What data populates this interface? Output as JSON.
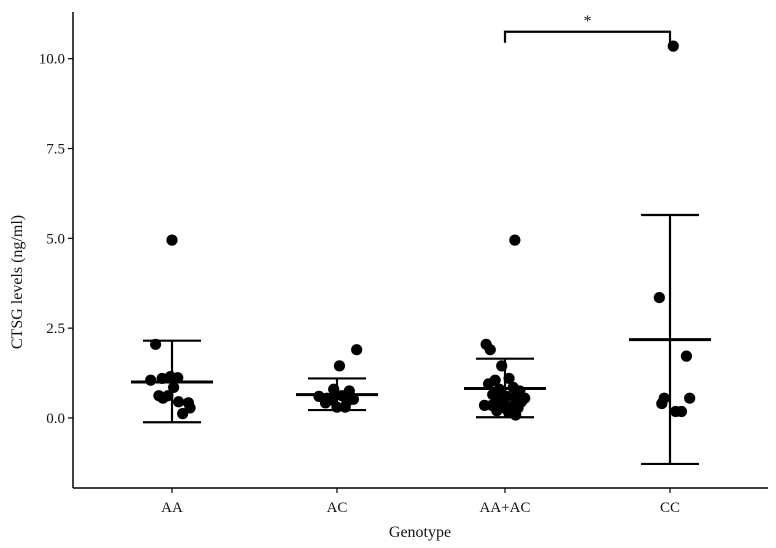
{
  "chart_data": {
    "type": "scatter",
    "xlabel": "Genotype",
    "ylabel": "CTSG levels (ng/ml)",
    "categories": [
      "AA",
      "AC",
      "AA+AC",
      "CC"
    ],
    "ylim": [
      -1.95,
      11.3
    ],
    "yticks": [
      0.0,
      2.5,
      5.0,
      7.5,
      10.0
    ],
    "ytick_labels": [
      "0.0",
      "2.5",
      "5.0",
      "7.5",
      "10.0"
    ],
    "grid": false,
    "legend": "none",
    "series": [
      {
        "category": "AA",
        "mean": 1.0,
        "upper": 2.15,
        "lower": -0.12,
        "points": [
          {
            "dx": 0.0,
            "y": 4.95
          },
          {
            "dx": -0.2,
            "y": 2.05
          },
          {
            "dx": -0.26,
            "y": 1.05
          },
          {
            "dx": -0.12,
            "y": 1.1
          },
          {
            "dx": -0.02,
            "y": 1.15
          },
          {
            "dx": 0.07,
            "y": 1.12
          },
          {
            "dx": -0.16,
            "y": 0.62
          },
          {
            "dx": -0.05,
            "y": 0.62
          },
          {
            "dx": -0.11,
            "y": 0.55
          },
          {
            "dx": 0.02,
            "y": 0.85
          },
          {
            "dx": 0.08,
            "y": 0.45
          },
          {
            "dx": 0.2,
            "y": 0.42
          },
          {
            "dx": 0.22,
            "y": 0.28
          },
          {
            "dx": 0.13,
            "y": 0.12
          }
        ]
      },
      {
        "category": "AC",
        "mean": 0.65,
        "upper": 1.1,
        "lower": 0.22,
        "points": [
          {
            "dx": 0.24,
            "y": 1.9
          },
          {
            "dx": 0.03,
            "y": 1.45
          },
          {
            "dx": -0.04,
            "y": 0.8
          },
          {
            "dx": 0.15,
            "y": 0.75
          },
          {
            "dx": -0.22,
            "y": 0.6
          },
          {
            "dx": -0.12,
            "y": 0.55
          },
          {
            "dx": -0.06,
            "y": 0.5
          },
          {
            "dx": 0.06,
            "y": 0.62
          },
          {
            "dx": 0.12,
            "y": 0.45
          },
          {
            "dx": -0.14,
            "y": 0.42
          },
          {
            "dx": 0.2,
            "y": 0.52
          },
          {
            "dx": 0.0,
            "y": 0.3
          },
          {
            "dx": 0.1,
            "y": 0.3
          }
        ]
      },
      {
        "category": "AA+AC",
        "mean": 0.82,
        "upper": 1.65,
        "lower": 0.02,
        "points": [
          {
            "dx": 0.12,
            "y": 4.95
          },
          {
            "dx": -0.23,
            "y": 2.05
          },
          {
            "dx": -0.18,
            "y": 1.9
          },
          {
            "dx": -0.04,
            "y": 1.45
          },
          {
            "dx": -0.12,
            "y": 1.05
          },
          {
            "dx": 0.05,
            "y": 1.1
          },
          {
            "dx": -0.2,
            "y": 0.95
          },
          {
            "dx": 0.1,
            "y": 0.85
          },
          {
            "dx": -0.07,
            "y": 0.8
          },
          {
            "dx": 0.18,
            "y": 0.75
          },
          {
            "dx": -0.15,
            "y": 0.65
          },
          {
            "dx": 0.02,
            "y": 0.6
          },
          {
            "dx": -0.09,
            "y": 0.55
          },
          {
            "dx": 0.12,
            "y": 0.58
          },
          {
            "dx": 0.24,
            "y": 0.55
          },
          {
            "dx": 0.2,
            "y": 0.45
          },
          {
            "dx": -0.03,
            "y": 0.45
          },
          {
            "dx": -0.25,
            "y": 0.35
          },
          {
            "dx": -0.16,
            "y": 0.35
          },
          {
            "dx": 0.08,
            "y": 0.32
          },
          {
            "dx": 0.16,
            "y": 0.28
          },
          {
            "dx": -0.06,
            "y": 0.28
          },
          {
            "dx": 0.04,
            "y": 0.18
          },
          {
            "dx": -0.1,
            "y": 0.2
          },
          {
            "dx": 0.13,
            "y": 0.08
          }
        ]
      },
      {
        "category": "CC",
        "mean": 2.18,
        "upper": 5.65,
        "lower": -1.28,
        "points": [
          {
            "dx": 0.04,
            "y": 10.35
          },
          {
            "dx": -0.13,
            "y": 3.35
          },
          {
            "dx": 0.2,
            "y": 1.72
          },
          {
            "dx": -0.07,
            "y": 0.55
          },
          {
            "dx": -0.1,
            "y": 0.4
          },
          {
            "dx": 0.24,
            "y": 0.55
          },
          {
            "dx": 0.07,
            "y": 0.18
          },
          {
            "dx": 0.14,
            "y": 0.18
          }
        ]
      }
    ],
    "annotations": [
      {
        "type": "significance",
        "from": "AA+AC",
        "to": "CC",
        "y": 10.75,
        "label": "*"
      }
    ]
  }
}
